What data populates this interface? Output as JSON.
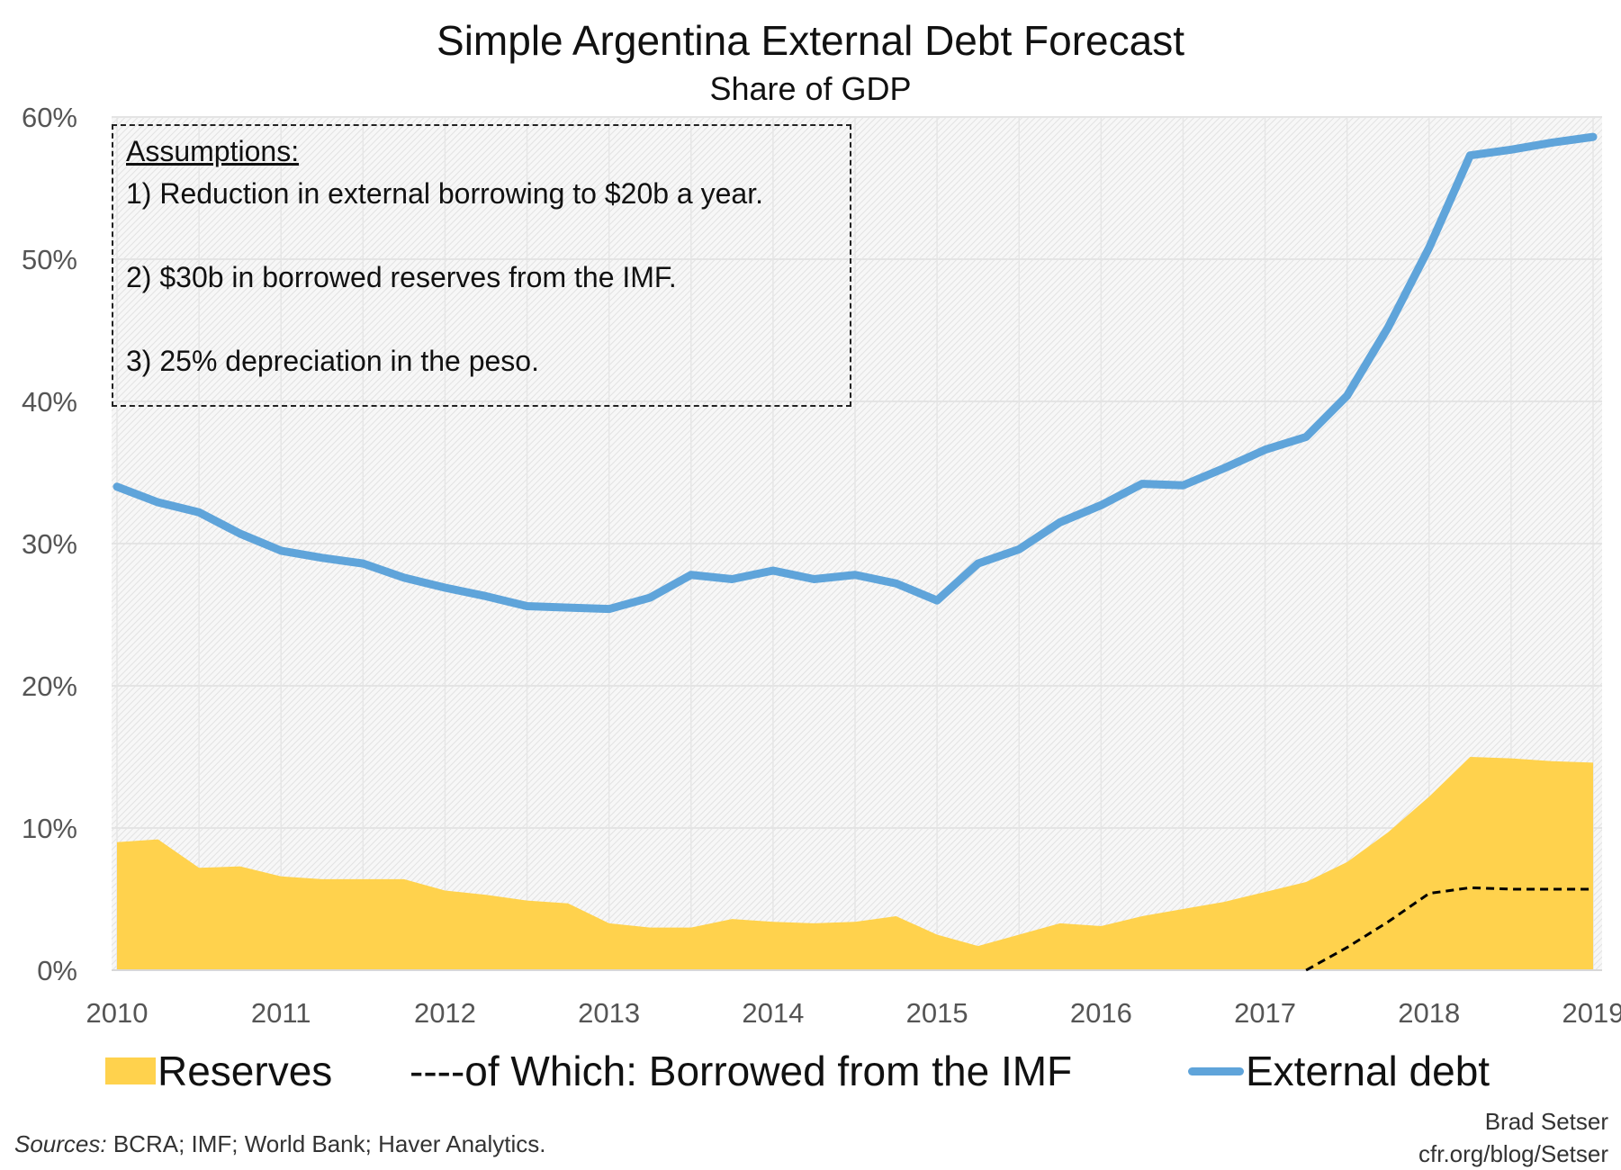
{
  "chart_data": {
    "type": "area+line",
    "title": "Simple Argentina External Debt Forecast",
    "subtitle": "Share of GDP",
    "xlabel": "",
    "ylabel": "",
    "xlim": [
      2010,
      2019
    ],
    "ylim": [
      0,
      60
    ],
    "x_ticks": [
      "2010",
      "2011",
      "2012",
      "2013",
      "2014",
      "2015",
      "2016",
      "2017",
      "2018",
      "2019"
    ],
    "y_ticks": [
      "0%",
      "10%",
      "20%",
      "30%",
      "40%",
      "50%",
      "60%"
    ],
    "grid": true,
    "legend_position": "bottom",
    "x": [
      2010,
      2010.25,
      2010.5,
      2010.75,
      2011,
      2011.25,
      2011.5,
      2011.75,
      2012,
      2012.25,
      2012.5,
      2012.75,
      2013,
      2013.25,
      2013.5,
      2013.75,
      2014,
      2014.25,
      2014.5,
      2014.75,
      2015,
      2015.25,
      2015.5,
      2015.75,
      2016,
      2016.25,
      2016.5,
      2016.75,
      2017,
      2017.25,
      2017.5,
      2017.75,
      2018,
      2018.25,
      2018.5,
      2018.75,
      2019
    ],
    "series": [
      {
        "name": "Reserves",
        "type": "area",
        "color": "#FFD24D",
        "values": [
          9.0,
          9.2,
          7.2,
          7.3,
          6.6,
          6.4,
          6.4,
          6.4,
          5.6,
          5.3,
          4.9,
          4.7,
          3.3,
          3.0,
          3.0,
          3.6,
          3.4,
          3.3,
          3.4,
          3.8,
          2.5,
          1.7,
          2.5,
          3.3,
          3.1,
          3.8,
          4.3,
          4.8,
          5.5,
          6.2,
          7.6,
          9.7,
          12.2,
          15.0,
          14.9,
          14.7,
          14.6
        ]
      },
      {
        "name": "of Which: Borrowed from the IMF",
        "type": "dashed-line",
        "color": "#000000",
        "values": [
          null,
          null,
          null,
          null,
          null,
          null,
          null,
          null,
          null,
          null,
          null,
          null,
          null,
          null,
          null,
          null,
          null,
          null,
          null,
          null,
          null,
          null,
          null,
          null,
          null,
          null,
          null,
          null,
          null,
          0,
          1.6,
          3.4,
          5.4,
          5.8,
          5.7,
          5.7,
          5.7
        ]
      },
      {
        "name": "External debt",
        "type": "line",
        "color": "#5FA4DA",
        "values": [
          34.0,
          32.9,
          32.2,
          30.7,
          29.5,
          29.0,
          28.6,
          27.6,
          26.9,
          26.3,
          25.6,
          25.5,
          25.4,
          26.2,
          27.8,
          27.5,
          28.1,
          27.5,
          27.8,
          27.2,
          26.0,
          28.6,
          29.6,
          31.5,
          32.7,
          34.2,
          34.1,
          35.3,
          36.6,
          37.5,
          40.4,
          45.2,
          50.8,
          57.3,
          57.7,
          58.2,
          58.6
        ]
      }
    ],
    "annotation": {
      "heading": "Assumptions:",
      "lines": [
        "1) Reduction in external borrowing to $20b a year.",
        "2) $30b in borrowed reserves from the IMF.",
        "3) 25% depreciation in the peso."
      ]
    },
    "legend": [
      "Reserves",
      "----of Which: Borrowed from the IMF",
      "External debt"
    ]
  },
  "footer": {
    "sources_label": "Sources:",
    "sources": " BCRA; IMF; World Bank; Haver Analytics.",
    "author": "Brad Setser",
    "url": "cfr.org/blog/Setser"
  }
}
